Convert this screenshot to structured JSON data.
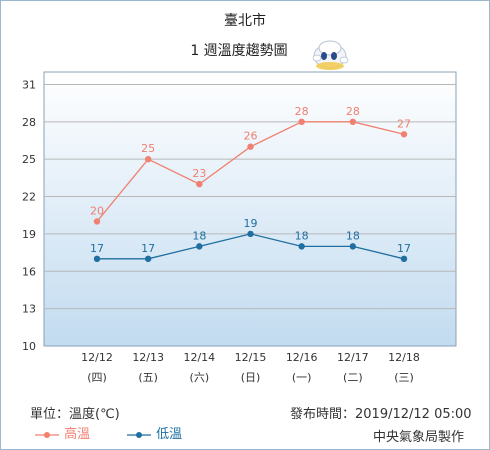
{
  "header": {
    "city": "臺北市",
    "subtitle": "1 週溫度趨勢圖"
  },
  "footer": {
    "unit": "單位：溫度(℃)",
    "published_label": "發布時間：",
    "published_time": "2019/12/12 05:00",
    "credit": "中央氣象局製作"
  },
  "colors": {
    "high": "#f08070",
    "low": "#1f6fa0",
    "plot_top": "#ffffff",
    "plot_bottom": "#c2dbf0"
  },
  "chart_data": {
    "type": "line",
    "categories": [
      "12/12",
      "12/13",
      "12/14",
      "12/15",
      "12/16",
      "12/17",
      "12/18"
    ],
    "weekdays": [
      "(四)",
      "(五)",
      "(六)",
      "(日)",
      "(一)",
      "(二)",
      "(三)"
    ],
    "ylim": [
      10,
      32
    ],
    "yticks": [
      10,
      13,
      16,
      19,
      22,
      25,
      28,
      31
    ],
    "grid": true,
    "series": [
      {
        "name": "高溫",
        "values": [
          20,
          25,
          23,
          26,
          28,
          28,
          27
        ]
      },
      {
        "name": "低溫",
        "values": [
          17,
          17,
          18,
          19,
          18,
          18,
          17
        ]
      }
    ],
    "legend_position": "bottom-left"
  }
}
